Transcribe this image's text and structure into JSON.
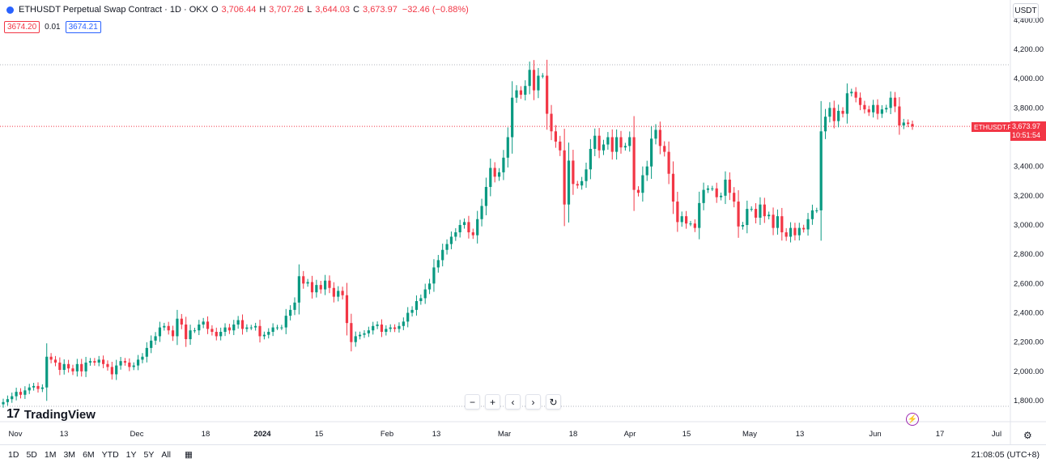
{
  "header": {
    "symbol": "ETHUSDT Perpetual Swap Contract · 1D · OKX",
    "o_label": "O",
    "o_value": "3,706.44",
    "h_label": "H",
    "h_value": "3,707.26",
    "l_label": "L",
    "l_value": "3,644.03",
    "c_label": "C",
    "c_value": "3,673.97",
    "change": "−32.46 (−0.88%)"
  },
  "order_boxes": {
    "sell": "3674.20",
    "spread": "0.01",
    "buy": "3674.21"
  },
  "currency_button": "USDT",
  "last_price": {
    "symbol_label": "ETHUSDT.P",
    "price": "3,673.97",
    "countdown": "10:51:54"
  },
  "toolbar": {
    "zoom_out": "−",
    "zoom_in": "+",
    "scroll_left": "‹",
    "scroll_right": "›",
    "reset": "↻"
  },
  "brand": "TradingView",
  "bottom": {
    "ranges": [
      "1D",
      "5D",
      "1M",
      "3M",
      "6M",
      "YTD",
      "1Y",
      "5Y",
      "All"
    ],
    "clock": "21:08:05 (UTC+8)"
  },
  "colors": {
    "up": "#089981",
    "down": "#f23645",
    "accent": "#2962ff"
  },
  "chart_data": {
    "type": "candlestick",
    "ylim": [
      1700,
      4400
    ],
    "y_ticks": [
      "1,800.00",
      "2,000.00",
      "2,200.00",
      "2,400.00",
      "2,600.00",
      "2,800.00",
      "3,000.00",
      "3,200.00",
      "3,400.00",
      "3,600.00",
      "3,800.00",
      "4,000.00",
      "4,200.00",
      "4,400.00"
    ],
    "x_ticks": [
      "Nov",
      "13",
      "Dec",
      "18",
      "2024",
      "15",
      "Feb",
      "13",
      "Mar",
      "18",
      "Apr",
      "15",
      "May",
      "13",
      "Jun",
      "17",
      "Jul"
    ],
    "closes": [
      1790,
      1810,
      1830,
      1860,
      1840,
      1870,
      1890,
      1900,
      1880,
      1890,
      2100,
      2080,
      2060,
      2010,
      2050,
      2020,
      2000,
      2050,
      2000,
      2060,
      2070,
      2060,
      2080,
      2050,
      2030,
      1980,
      2040,
      2070,
      2060,
      2030,
      2040,
      2080,
      2100,
      2160,
      2210,
      2240,
      2300,
      2310,
      2280,
      2240,
      2360,
      2320,
      2220,
      2280,
      2280,
      2320,
      2340,
      2290,
      2270,
      2240,
      2270,
      2300,
      2280,
      2320,
      2350,
      2290,
      2300,
      2300,
      2310,
      2240,
      2250,
      2270,
      2300,
      2300,
      2300,
      2380,
      2420,
      2470,
      2650,
      2600,
      2610,
      2540,
      2590,
      2560,
      2620,
      2570,
      2510,
      2550,
      2520,
      2330,
      2200,
      2240,
      2250,
      2260,
      2280,
      2310,
      2320,
      2270,
      2290,
      2300,
      2290,
      2310,
      2340,
      2400,
      2420,
      2480,
      2500,
      2560,
      2600,
      2710,
      2760,
      2830,
      2870,
      2920,
      2950,
      3000,
      3020,
      2950,
      2930,
      3040,
      3130,
      3260,
      3390,
      3330,
      3360,
      3460,
      3600,
      3870,
      3920,
      3890,
      3950,
      4060,
      3920,
      4020,
      4020,
      3760,
      3640,
      3570,
      3510,
      3140,
      3440,
      3280,
      3270,
      3300,
      3380,
      3520,
      3610,
      3510,
      3550,
      3600,
      3500,
      3600,
      3530,
      3540,
      3600,
      3240,
      3220,
      3340,
      3400,
      3590,
      3650,
      3540,
      3500,
      3350,
      3160,
      3020,
      3060,
      3010,
      3010,
      2980,
      3150,
      3240,
      3250,
      3250,
      3190,
      3200,
      3310,
      3220,
      3160,
      2990,
      3000,
      3110,
      3110,
      3050,
      3140,
      3060,
      3070,
      2980,
      3060,
      2950,
      2920,
      2980,
      2930,
      2980,
      2970,
      3040,
      3100,
      3100,
      3640,
      3740,
      3800,
      3710,
      3780,
      3760,
      3900,
      3910,
      3870,
      3820,
      3790,
      3770,
      3820,
      3760,
      3790,
      3800,
      3870,
      3810,
      3680,
      3700,
      3690,
      3674
    ],
    "series_name": "ETHUSDT.P",
    "last": 3673.97,
    "high_line": 4100
  }
}
